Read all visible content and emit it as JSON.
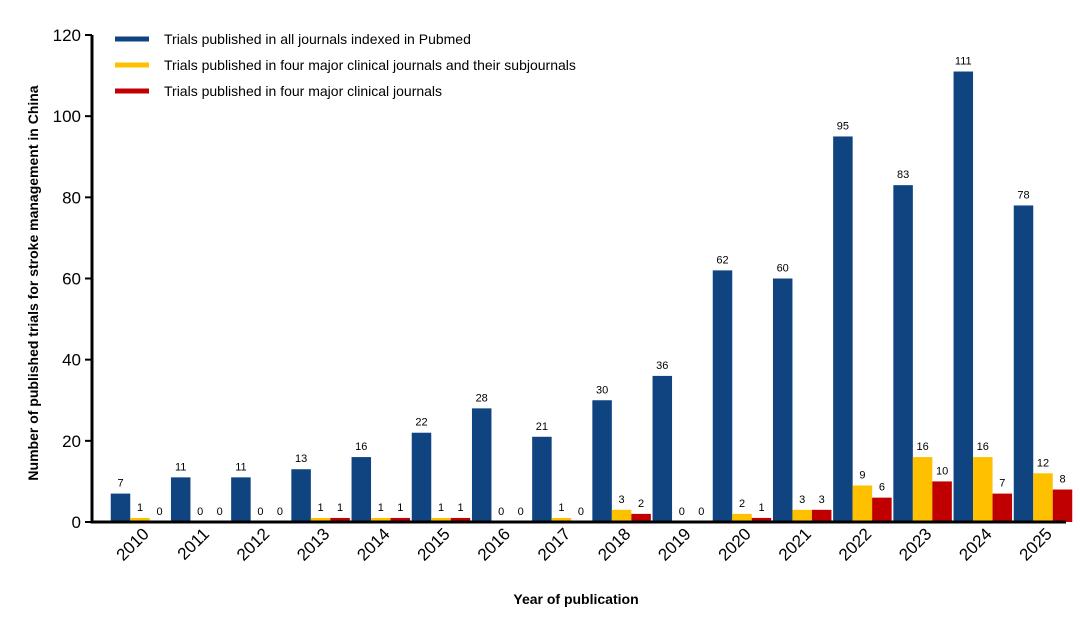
{
  "chart_data": {
    "type": "bar",
    "title": "",
    "xlabel": "Year of publication",
    "ylabel": "Number of published trials for stroke management in China",
    "ylim": [
      0,
      120
    ],
    "yticks": [
      0,
      20,
      40,
      60,
      80,
      100,
      120
    ],
    "grid": false,
    "legend_position": "top-left",
    "categories": [
      "2010",
      "2011",
      "2012",
      "2013",
      "2014",
      "2015",
      "2016",
      "2017",
      "2018",
      "2019",
      "2020",
      "2021",
      "2022",
      "2023",
      "2024",
      "2025"
    ],
    "series": [
      {
        "name": "Trials published in all journals indexed in Pubmed",
        "color": "#0f4480",
        "values": [
          7,
          11,
          11,
          13,
          16,
          22,
          28,
          21,
          30,
          36,
          62,
          60,
          95,
          83,
          111,
          78
        ]
      },
      {
        "name": "Trials published in four major clinical journals and their subjournals",
        "color": "#ffc000",
        "values": [
          1,
          0,
          0,
          1,
          1,
          1,
          0,
          1,
          3,
          0,
          2,
          3,
          9,
          16,
          16,
          12
        ]
      },
      {
        "name": "Trials published in four major clinical journals",
        "color": "#c00000",
        "values": [
          0,
          0,
          0,
          1,
          1,
          1,
          0,
          0,
          2,
          0,
          1,
          3,
          6,
          10,
          7,
          8
        ]
      }
    ]
  }
}
